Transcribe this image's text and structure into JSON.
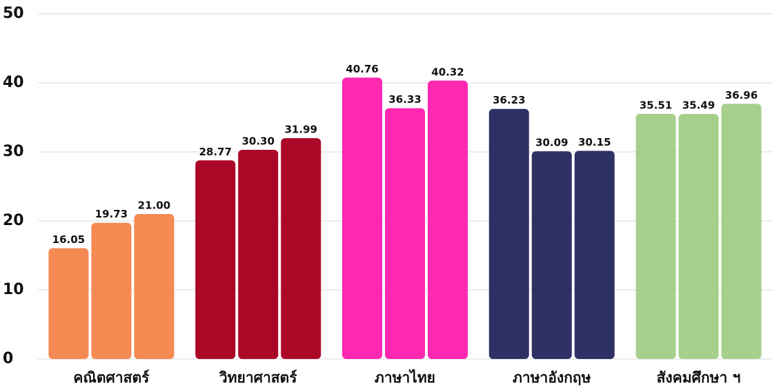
{
  "chart_data": {
    "type": "grouped-bar",
    "categories": [
      "คณิตศาสตร์",
      "วิทยาศาสตร์",
      "ภาษาไทย",
      "ภาษาอังกฤษ",
      "สังคมศึกษา ฯ"
    ],
    "colors": [
      "#f58a52",
      "#ab0727",
      "#ff28b1",
      "#2e3163",
      "#a6cf8b"
    ],
    "values": [
      [
        16.05,
        19.73,
        21.0
      ],
      [
        28.77,
        30.3,
        31.99
      ],
      [
        40.76,
        36.33,
        40.32
      ],
      [
        36.23,
        30.09,
        30.15
      ],
      [
        35.51,
        35.49,
        36.96
      ]
    ],
    "value_labels": [
      [
        "16.05",
        "19.73",
        "21.00"
      ],
      [
        "28.77",
        "30.30",
        "31.99"
      ],
      [
        "40.76",
        "36.33",
        "40.32"
      ],
      [
        "36.23",
        "30.09",
        "30.15"
      ],
      [
        "35.51",
        "35.49",
        "36.96"
      ]
    ],
    "ylim": [
      0,
      50
    ],
    "yticks": [
      0,
      10,
      20,
      30,
      40,
      50
    ],
    "grid": true
  }
}
